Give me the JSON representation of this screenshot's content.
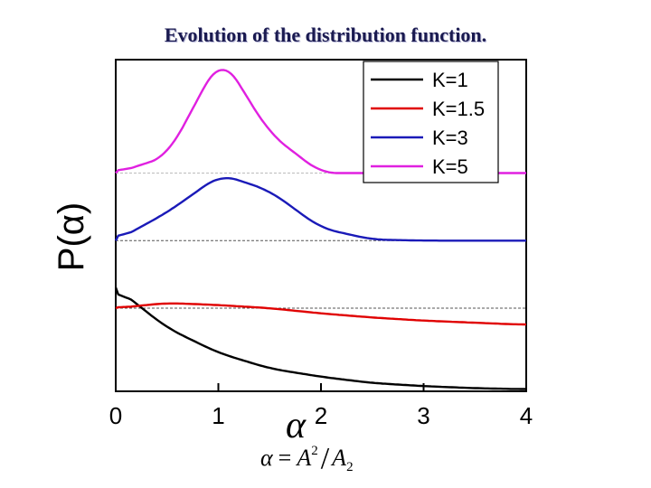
{
  "slide": {
    "title": "Evolution of the distribution function."
  },
  "formula": {
    "lhs": "α",
    "eq": "=",
    "num_base": "A",
    "num_exp": "2",
    "slash": "/",
    "den_base": "A",
    "den_sub": "2"
  },
  "chart_data": {
    "type": "line",
    "title": "Evolution of the distribution function.",
    "xlabel": "α",
    "ylabel": "P(α)",
    "xlim": [
      0,
      4
    ],
    "x_ticks": [
      "0",
      "1",
      "2",
      "3",
      "4"
    ],
    "grid": false,
    "legend_position": "top-right",
    "series": [
      {
        "name": "K=1",
        "color": "#000000",
        "shape": "decay",
        "baseline_offset": 0.0,
        "peak_x": 0.0,
        "x": [
          0,
          0.5,
          1,
          1.5,
          2,
          2.5,
          3,
          3.5,
          4
        ],
        "values": [
          1.0,
          0.61,
          0.37,
          0.22,
          0.14,
          0.08,
          0.05,
          0.03,
          0.02
        ]
      },
      {
        "name": "K=1.5",
        "color": "#e00000",
        "shape": "broad",
        "baseline_offset": 0.8,
        "peak_x": 0.5,
        "x": [
          0,
          0.5,
          1,
          1.5,
          2,
          2.5,
          3,
          3.5,
          4
        ],
        "values": [
          0.0,
          0.05,
          0.03,
          0.0,
          -0.05,
          -0.09,
          -0.12,
          -0.14,
          -0.16
        ]
      },
      {
        "name": "K=3",
        "color": "#1a1ab8",
        "shape": "peak",
        "baseline_offset": 1.45,
        "peak_x": 1.05,
        "x": [
          0,
          0.5,
          1,
          1.05,
          1.5,
          2,
          2.5,
          3,
          4
        ],
        "values": [
          0.0,
          0.27,
          0.62,
          0.63,
          0.48,
          0.12,
          0.01,
          0.0,
          0.0
        ]
      },
      {
        "name": "K=5",
        "color": "#e020e0",
        "shape": "peak",
        "baseline_offset": 2.1,
        "peak_x": 1.05,
        "x": [
          0,
          0.5,
          1,
          1.05,
          1.5,
          2,
          2.5,
          3,
          4
        ],
        "values": [
          0.0,
          0.16,
          1.08,
          1.1,
          0.38,
          0.0,
          0.0,
          0.0,
          0.0
        ]
      }
    ]
  }
}
